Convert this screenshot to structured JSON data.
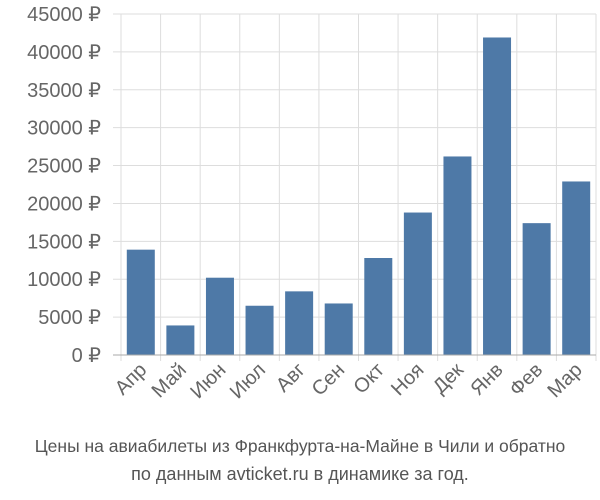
{
  "chart_data": {
    "type": "bar",
    "categories": [
      "Апр",
      "Май",
      "Июн",
      "Июл",
      "Авг",
      "Сен",
      "Окт",
      "Ноя",
      "Дек",
      "Янв",
      "Фев",
      "Мар"
    ],
    "values": [
      13900,
      3900,
      10200,
      6500,
      8400,
      6800,
      12800,
      18800,
      26200,
      41900,
      17400,
      22900
    ],
    "y_ticks": [
      "0 ₽",
      "5000 ₽",
      "10000 ₽",
      "15000 ₽",
      "20000 ₽",
      "25000 ₽",
      "30000 ₽",
      "35000 ₽",
      "40000 ₽",
      "45000 ₽"
    ],
    "ylim": [
      0,
      45000
    ],
    "grid": true,
    "bar_color": "#4e79a7",
    "grid_color": "#dddddd",
    "caption": {
      "line1": "Цены на авиабилеты из Франкфурта-на-Майне в Чили и обратно",
      "line2": "по данным avticket.ru в динамике за год."
    }
  }
}
